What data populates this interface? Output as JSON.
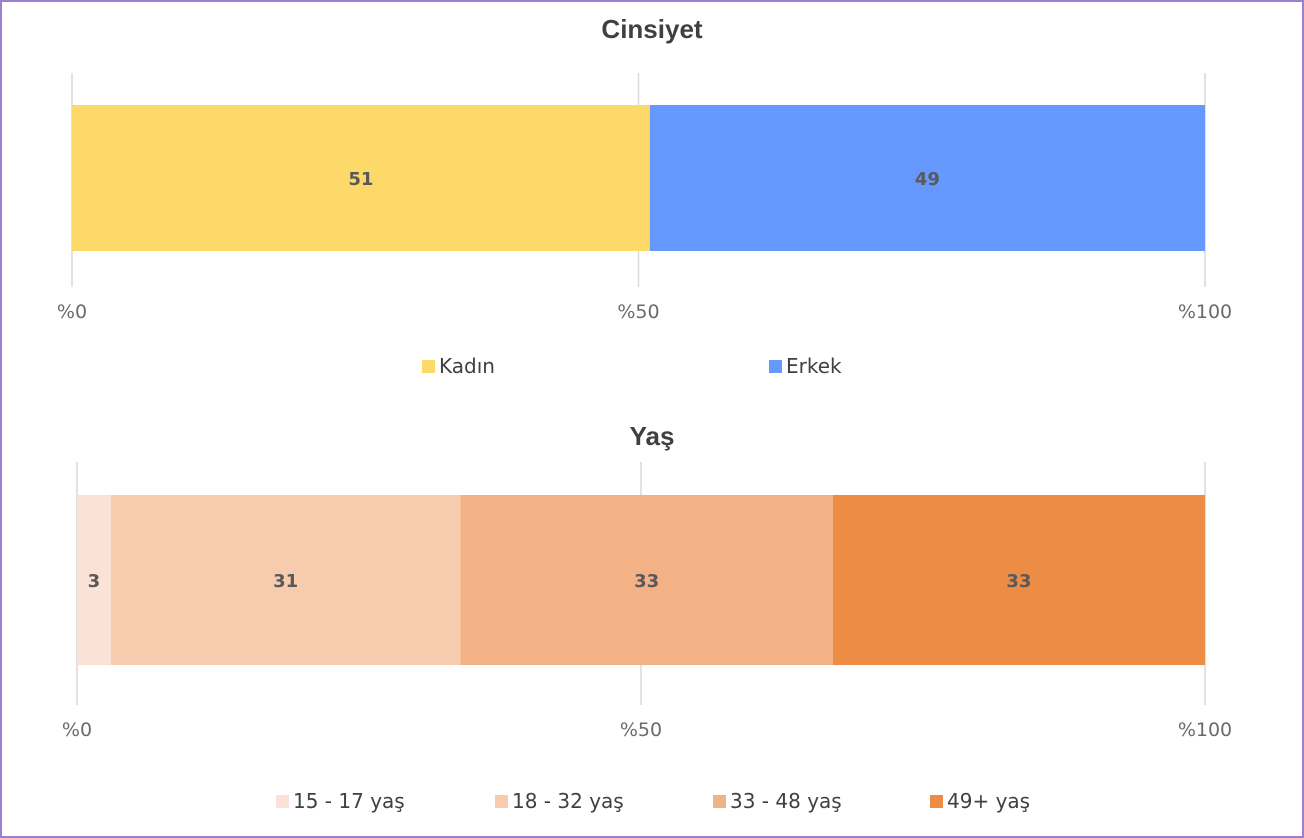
{
  "chart_data": [
    {
      "type": "bar",
      "orientation": "horizontal",
      "stacked": true,
      "title": "Cinsiyet",
      "xlim": [
        0,
        100
      ],
      "ticks": [
        "%0",
        "%50",
        "%100"
      ],
      "grid": true,
      "legend_position": "bottom",
      "series": [
        {
          "name": "Kadın",
          "value": 51,
          "label": "51",
          "color": "#fdd96a"
        },
        {
          "name": "Erkek",
          "value": 49,
          "label": "49",
          "color": "#6699fd"
        }
      ]
    },
    {
      "type": "bar",
      "orientation": "horizontal",
      "stacked": true,
      "title": "Yaş",
      "xlim": [
        0,
        100
      ],
      "ticks": [
        "%0",
        "%50",
        "%100"
      ],
      "grid": true,
      "legend_position": "bottom",
      "series": [
        {
          "name": "15 - 17 yaş",
          "value": 3,
          "label": "3",
          "color": "#fae3d6"
        },
        {
          "name": "18 - 32 yaş",
          "value": 31,
          "label": "31",
          "color": "#f7cbae"
        },
        {
          "name": "33 - 48 yaş",
          "value": 33,
          "label": "33",
          "color": "#f3b186"
        },
        {
          "name": "49+ yaş",
          "value": 33,
          "label": "33",
          "color": "#ed8c45"
        }
      ]
    }
  ]
}
